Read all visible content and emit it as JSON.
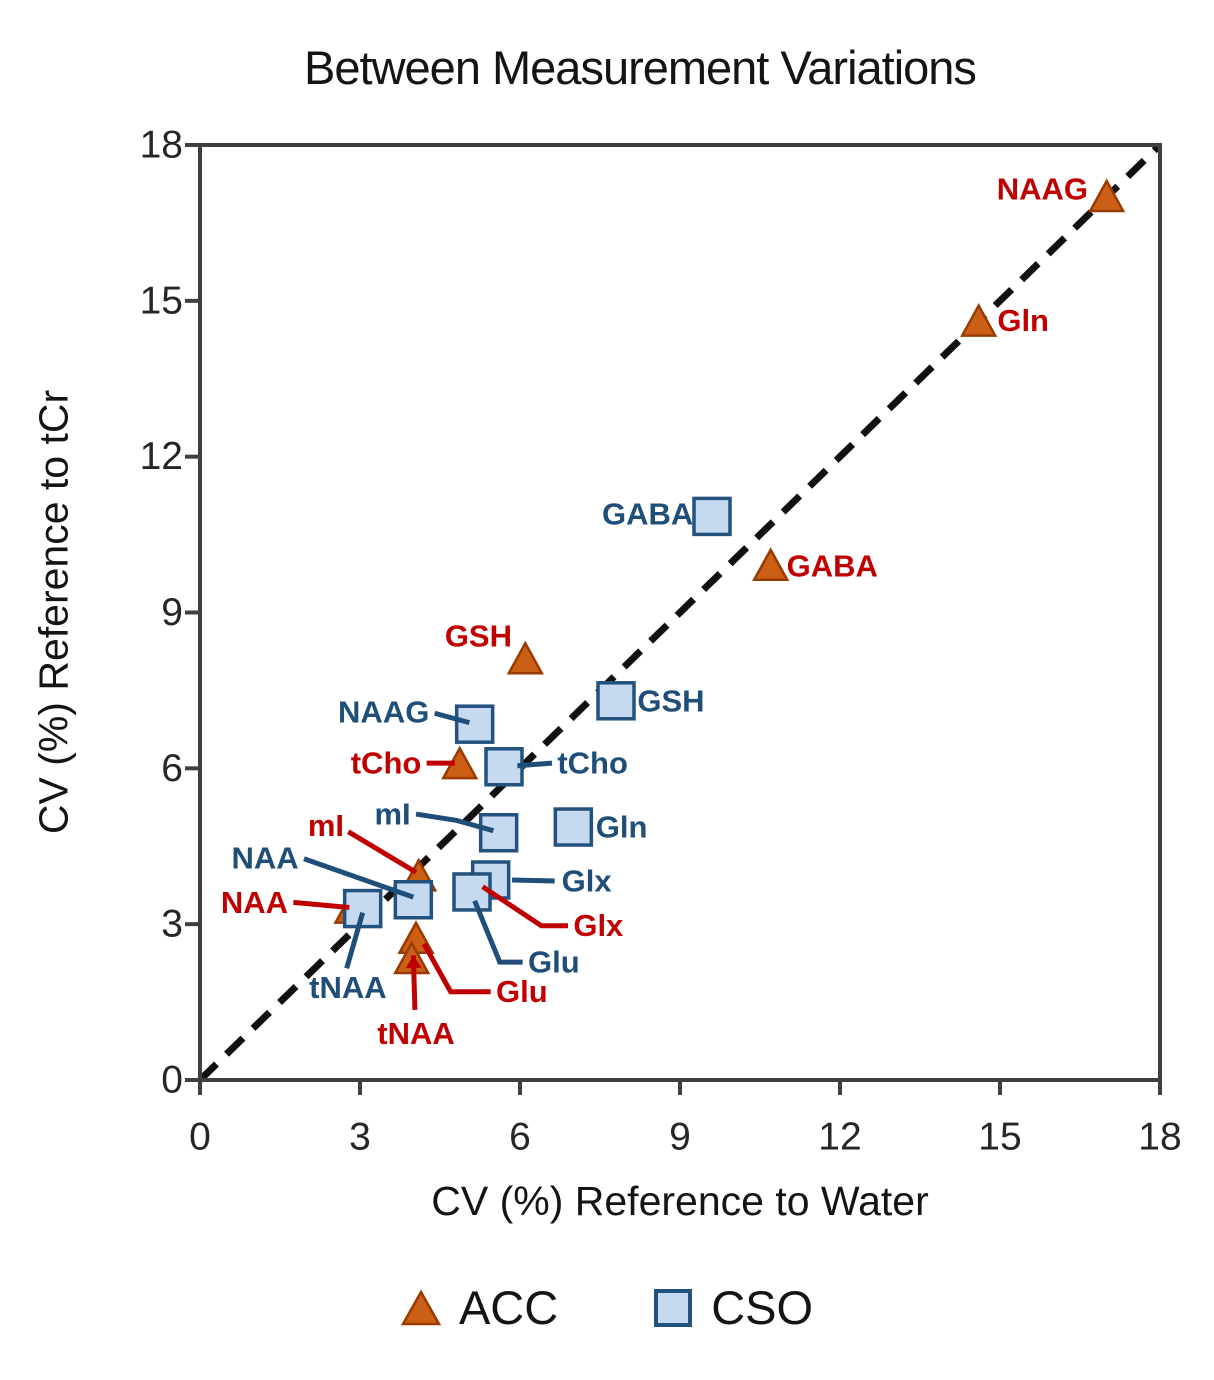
{
  "chart_data": {
    "type": "scatter",
    "title": "Between Measurement Variations",
    "xlabel": "CV (%) Reference to Water",
    "ylabel": "CV (%) Reference to tCr",
    "xlim": [
      0,
      18
    ],
    "ylim": [
      0,
      18
    ],
    "xticks": [
      0,
      3,
      6,
      9,
      12,
      15,
      18
    ],
    "yticks": [
      0,
      3,
      6,
      9,
      12,
      15,
      18
    ],
    "grid": false,
    "frame_color": "#3f3f3f",
    "tick_label_color": "#262626",
    "identity_line": {
      "style": "dashed",
      "from": [
        0,
        0
      ],
      "to": [
        18,
        18
      ],
      "color": "#111111"
    },
    "legend": {
      "position": "bottom",
      "items": [
        {
          "label": "ACC",
          "marker": "triangle"
        },
        {
          "label": "CSO",
          "marker": "square"
        }
      ]
    },
    "series": [
      {
        "name": "ACC",
        "marker": "triangle",
        "marker_fill": "#CC5F16",
        "marker_stroke": "#993B00",
        "label_color": "#C00000",
        "points": [
          {
            "label": "NAAG",
            "x": 17.0,
            "y": 17.0,
            "label_pos": [
              16.65,
              17.15
            ],
            "anchor": "end"
          },
          {
            "label": "Gln",
            "x": 14.6,
            "y": 14.6,
            "label_pos": [
              14.95,
              14.62
            ],
            "anchor": "start"
          },
          {
            "label": "GABA",
            "x": 10.7,
            "y": 9.9,
            "label_pos": [
              11.0,
              9.9
            ],
            "anchor": "start"
          },
          {
            "label": "GSH",
            "x": 6.1,
            "y": 8.1,
            "label_pos": [
              5.85,
              8.55
            ],
            "anchor": "end"
          },
          {
            "label": "tCho",
            "x": 4.87,
            "y": 6.08,
            "label_pos": [
              4.15,
              6.1
            ],
            "anchor": "end",
            "leader": [
              [
                4.25,
                6.1
              ],
              [
                4.78,
                6.1
              ]
            ]
          },
          {
            "label": "mI",
            "x": 4.1,
            "y": 3.92,
            "label_pos": [
              2.7,
              4.9
            ],
            "anchor": "end",
            "leader": [
              [
                2.78,
                4.78
              ],
              [
                4.05,
                4.0
              ]
            ]
          },
          {
            "label": "NAA",
            "x": 2.85,
            "y": 3.3,
            "label_pos": [
              1.65,
              3.42
            ],
            "anchor": "end",
            "leader": [
              [
                1.75,
                3.42
              ],
              [
                2.8,
                3.32
              ]
            ]
          },
          {
            "label": "Glx",
            "x": 5.25,
            "y": 3.8,
            "label_pos": [
              7.0,
              2.97
            ],
            "anchor": "start",
            "leader": [
              [
                6.9,
                2.97
              ],
              [
                6.4,
                2.97
              ],
              [
                5.3,
                3.72
              ]
            ]
          },
          {
            "label": "Glu",
            "x": 4.05,
            "y": 2.72,
            "label_pos": [
              5.55,
              1.7
            ],
            "anchor": "start",
            "leader": [
              [
                5.45,
                1.7
              ],
              [
                4.7,
                1.7
              ],
              [
                4.2,
                2.62
              ]
            ]
          },
          {
            "label": "tNAA",
            "x": 3.97,
            "y": 2.33,
            "label_pos": [
              4.05,
              0.9
            ],
            "anchor": "middle",
            "leader": [
              [
                4.03,
                1.35
              ],
              [
                4.0,
                2.4
              ]
            ],
            "arrow": true
          }
        ]
      },
      {
        "name": "CSO",
        "marker": "square",
        "marker_fill": "#C5D9F1",
        "marker_stroke": "#24527E",
        "label_color": "#1F4E79",
        "points": [
          {
            "label": "GABA",
            "x": 9.6,
            "y": 10.85,
            "label_pos": [
              9.25,
              10.9
            ],
            "anchor": "end"
          },
          {
            "label": "GSH",
            "x": 7.8,
            "y": 7.3,
            "label_pos": [
              8.2,
              7.3
            ],
            "anchor": "start"
          },
          {
            "label": "NAAG",
            "x": 5.15,
            "y": 6.85,
            "label_pos": [
              4.3,
              7.08
            ],
            "anchor": "end",
            "leader": [
              [
                4.4,
                7.06
              ],
              [
                5.05,
                6.88
              ]
            ]
          },
          {
            "label": "tCho",
            "x": 5.7,
            "y": 6.03,
            "label_pos": [
              6.7,
              6.1
            ],
            "anchor": "start",
            "leader": [
              [
                6.6,
                6.1
              ],
              [
                5.95,
                6.05
              ]
            ]
          },
          {
            "label": "mI",
            "x": 5.6,
            "y": 4.76,
            "label_pos": [
              3.95,
              5.12
            ],
            "anchor": "end",
            "leader": [
              [
                4.05,
                5.12
              ],
              [
                4.8,
                5.0
              ],
              [
                5.5,
                4.8
              ]
            ]
          },
          {
            "label": "Gln",
            "x": 7.0,
            "y": 4.87,
            "label_pos": [
              7.42,
              4.87
            ],
            "anchor": "start"
          },
          {
            "label": "Glx",
            "x": 5.45,
            "y": 3.85,
            "label_pos": [
              6.78,
              3.83
            ],
            "anchor": "start",
            "leader": [
              [
                6.65,
                3.83
              ],
              [
                5.85,
                3.85
              ]
            ]
          },
          {
            "label": "Glu",
            "x": 5.1,
            "y": 3.62,
            "label_pos": [
              6.15,
              2.27
            ],
            "anchor": "start",
            "leader": [
              [
                6.05,
                2.27
              ],
              [
                5.62,
                2.27
              ],
              [
                5.15,
                3.45
              ]
            ]
          },
          {
            "label": "NAA",
            "x": 4.0,
            "y": 3.47,
            "label_pos": [
              1.85,
              4.27
            ],
            "anchor": "end",
            "leader": [
              [
                1.95,
                4.26
              ],
              [
                4.0,
                3.52
              ]
            ]
          },
          {
            "label": "tNAA",
            "x": 3.05,
            "y": 3.3,
            "label_pos": [
              3.5,
              1.78
            ],
            "anchor": "end",
            "leader": [
              [
                2.75,
                2.15
              ],
              [
                3.05,
                3.22
              ]
            ]
          }
        ]
      }
    ]
  }
}
